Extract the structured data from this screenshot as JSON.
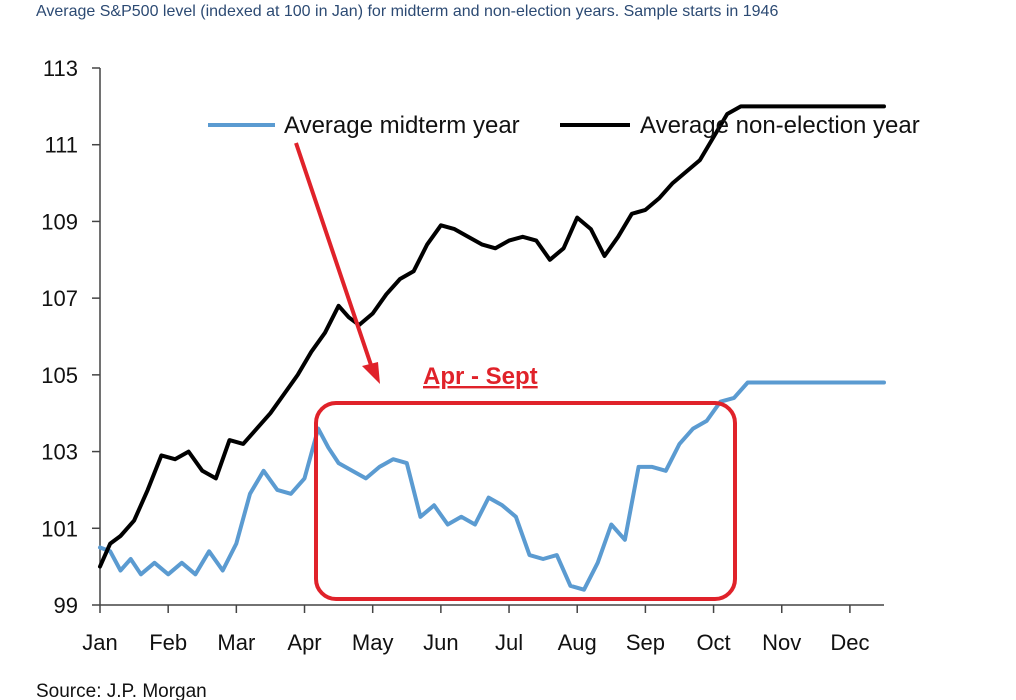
{
  "subtitle": "Average S&P500 level (indexed at 100 in Jan) for midterm and non-election years. Sample starts in 1946",
  "source": "Source: J.P. Morgan",
  "annotation": {
    "label": "Apr - Sept",
    "color": "#e0222a"
  },
  "chart_data": {
    "type": "line",
    "title": "",
    "xlabel": "",
    "ylabel": "",
    "xlim": [
      0,
      11.5
    ],
    "ylim": [
      99,
      113
    ],
    "categories": [
      "Jan",
      "Feb",
      "Mar",
      "Apr",
      "May",
      "Jun",
      "Jul",
      "Aug",
      "Sep",
      "Oct",
      "Nov",
      "Dec"
    ],
    "yticks": [
      99,
      101,
      103,
      105,
      107,
      109,
      111,
      113
    ],
    "grid": false,
    "legend_position": "top",
    "series": [
      {
        "name": "Average midterm year",
        "color": "#5b9bd1",
        "x": [
          0,
          0.15,
          0.3,
          0.45,
          0.6,
          0.8,
          1.0,
          1.2,
          1.4,
          1.6,
          1.8,
          2.0,
          2.2,
          2.4,
          2.6,
          2.8,
          3.0,
          3.2,
          3.35,
          3.5,
          3.7,
          3.9,
          4.1,
          4.3,
          4.5,
          4.7,
          4.9,
          5.1,
          5.3,
          5.5,
          5.7,
          5.9,
          6.1,
          6.3,
          6.5,
          6.7,
          6.9,
          7.1,
          7.3,
          7.5,
          7.7,
          7.9,
          8.1,
          8.3,
          8.5,
          8.7,
          8.9,
          9.1,
          9.3,
          9.5,
          9.7,
          9.9,
          10.1,
          10.3,
          10.5,
          10.7,
          10.9,
          11.1,
          11.3,
          11.5
        ],
        "y": [
          100.5,
          100.4,
          99.9,
          100.2,
          99.8,
          100.1,
          99.8,
          100.1,
          99.8,
          100.4,
          99.9,
          100.6,
          101.9,
          102.5,
          102.0,
          101.9,
          102.3,
          103.6,
          103.1,
          102.7,
          102.5,
          102.3,
          102.6,
          102.8,
          102.7,
          101.3,
          101.6,
          101.1,
          101.3,
          101.1,
          101.8,
          101.6,
          101.3,
          100.3,
          100.2,
          100.3,
          99.5,
          99.4,
          100.1,
          101.1,
          100.7,
          102.6,
          102.6,
          102.5,
          103.2,
          103.6,
          103.8,
          104.3,
          104.4,
          104.8,
          104.8,
          104.8,
          104.8,
          104.8,
          104.8,
          104.8,
          104.8,
          104.8,
          104.8,
          104.8
        ]
      },
      {
        "name": "Average non-election year",
        "color": "#000000",
        "x": [
          0,
          0.15,
          0.3,
          0.5,
          0.7,
          0.9,
          1.1,
          1.3,
          1.5,
          1.7,
          1.9,
          2.1,
          2.3,
          2.5,
          2.7,
          2.9,
          3.1,
          3.3,
          3.5,
          3.65,
          3.8,
          4.0,
          4.2,
          4.4,
          4.6,
          4.8,
          5.0,
          5.2,
          5.4,
          5.6,
          5.8,
          6.0,
          6.2,
          6.4,
          6.6,
          6.8,
          7.0,
          7.2,
          7.4,
          7.6,
          7.8,
          8.0,
          8.2,
          8.4,
          8.6,
          8.8,
          9.0,
          9.2,
          9.4,
          9.6,
          9.8,
          10.0,
          10.2,
          10.4,
          10.6,
          10.8,
          11.0,
          11.2,
          11.4,
          11.5
        ],
        "y": [
          100.0,
          100.6,
          100.8,
          101.2,
          102.0,
          102.9,
          102.8,
          103.0,
          102.5,
          102.3,
          103.3,
          103.2,
          103.6,
          104.0,
          104.5,
          105.0,
          105.6,
          106.1,
          106.8,
          106.5,
          106.3,
          106.6,
          107.1,
          107.5,
          107.7,
          108.4,
          108.9,
          108.8,
          108.6,
          108.4,
          108.3,
          108.5,
          108.6,
          108.5,
          108.0,
          108.3,
          109.1,
          108.8,
          108.1,
          108.6,
          109.2,
          109.3,
          109.6,
          110.0,
          110.3,
          110.6,
          111.2,
          111.8,
          112.0,
          112.0,
          112.0,
          112.0,
          112.0,
          112.0,
          112.0,
          112.0,
          112.0,
          112.0,
          112.0,
          112.0
        ]
      }
    ]
  }
}
